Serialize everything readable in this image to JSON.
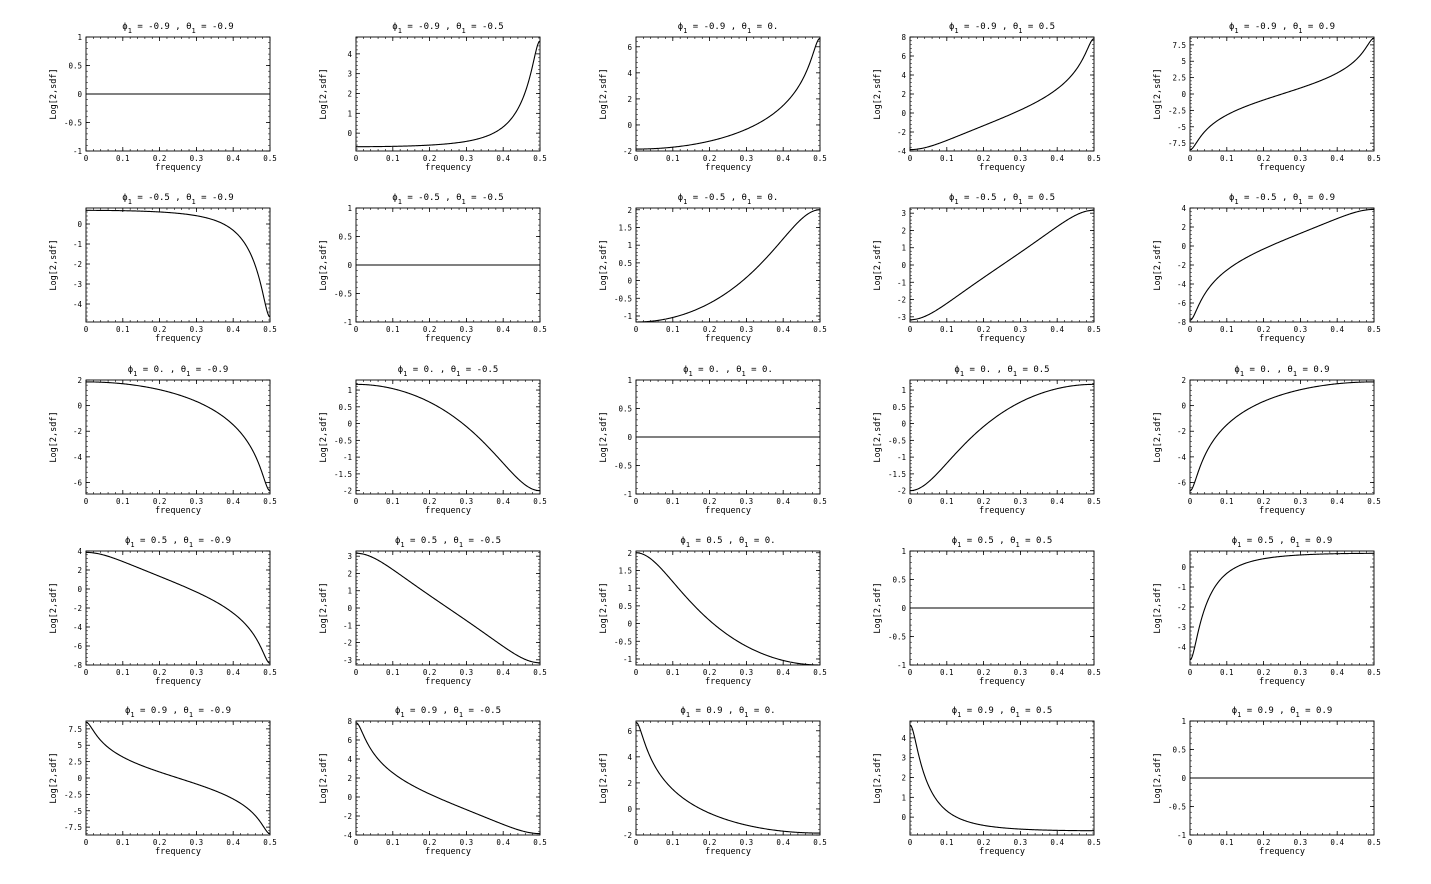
{
  "figure": {
    "ylabel": "Log[2,sdf]",
    "xlabel": "frequency",
    "x_ticks": [
      "0",
      "0.1",
      "0.2",
      "0.3",
      "0.4",
      "0.5"
    ]
  },
  "chart_data": [
    {
      "type": "line",
      "row": 0,
      "col": 0,
      "phi": -0.9,
      "theta": -0.9,
      "title_phi": "-0.9",
      "title_theta": "-0.9",
      "xlim": [
        0,
        0.5
      ],
      "ylim": [
        -1,
        1
      ],
      "yticks": [
        -1,
        -0.5,
        0,
        0.5,
        1
      ],
      "ytick_labels": [
        "-1",
        "-0.5",
        "0",
        "0.5",
        "1"
      ]
    },
    {
      "type": "line",
      "row": 0,
      "col": 1,
      "phi": -0.9,
      "theta": -0.5,
      "title_phi": "-0.9",
      "title_theta": "-0.5",
      "xlim": [
        0,
        0.5
      ],
      "ylim": [
        -0.9,
        4.85
      ],
      "yticks": [
        0,
        1,
        2,
        3,
        4
      ],
      "ytick_labels": [
        "0",
        "1",
        "2",
        "3",
        "4"
      ]
    },
    {
      "type": "line",
      "row": 0,
      "col": 2,
      "phi": -0.9,
      "theta": 0,
      "title_phi": "-0.9",
      "title_theta": "0.",
      "xlim": [
        0,
        0.5
      ],
      "ylim": [
        -2,
        6.75
      ],
      "yticks": [
        -2,
        0,
        2,
        4,
        6
      ],
      "ytick_labels": [
        "-2",
        "0",
        "2",
        "4",
        "6"
      ]
    },
    {
      "type": "line",
      "row": 0,
      "col": 3,
      "phi": -0.9,
      "theta": 0.5,
      "title_phi": "-0.9",
      "title_theta": "0.5",
      "xlim": [
        0,
        0.5
      ],
      "ylim": [
        -4,
        8
      ],
      "yticks": [
        -4,
        -2,
        0,
        2,
        4,
        6,
        8
      ],
      "ytick_labels": [
        "-4",
        "-2",
        "0",
        "2",
        "4",
        "6",
        "8"
      ]
    },
    {
      "type": "line",
      "row": 0,
      "col": 4,
      "phi": -0.9,
      "theta": 0.9,
      "title_phi": "-0.9",
      "title_theta": "0.9",
      "xlim": [
        0,
        0.5
      ],
      "ylim": [
        -8.7,
        8.7
      ],
      "yticks": [
        -7.5,
        -5,
        -2.5,
        0,
        2.5,
        5,
        7.5
      ],
      "ytick_labels": [
        "-7.5",
        "-5",
        "-2.5",
        "0",
        "2.5",
        "5",
        "7.5"
      ]
    },
    {
      "type": "line",
      "row": 1,
      "col": 0,
      "phi": -0.5,
      "theta": -0.9,
      "title_phi": "-0.5",
      "title_theta": "-0.9",
      "xlim": [
        0,
        0.5
      ],
      "ylim": [
        -4.9,
        0.8
      ],
      "yticks": [
        -4,
        -3,
        -2,
        -1,
        0
      ],
      "ytick_labels": [
        "-4",
        "-3",
        "-2",
        "-1",
        "0"
      ]
    },
    {
      "type": "line",
      "row": 1,
      "col": 1,
      "phi": -0.5,
      "theta": -0.5,
      "title_phi": "-0.5",
      "title_theta": "-0.5",
      "xlim": [
        0,
        0.5
      ],
      "ylim": [
        -1,
        1
      ],
      "yticks": [
        -1,
        -0.5,
        0,
        0.5,
        1
      ],
      "ytick_labels": [
        "-1",
        "-0.5",
        "0",
        "0.5",
        "1"
      ]
    },
    {
      "type": "line",
      "row": 1,
      "col": 2,
      "phi": -0.5,
      "theta": 0,
      "title_phi": "-0.5",
      "title_theta": "0.",
      "xlim": [
        0,
        0.5
      ],
      "ylim": [
        -1.17,
        2.05
      ],
      "yticks": [
        -1,
        -0.5,
        0,
        0.5,
        1,
        1.5,
        2
      ],
      "ytick_labels": [
        "-1",
        "-0.5",
        "0",
        "0.5",
        "1",
        "1.5",
        "2"
      ]
    },
    {
      "type": "line",
      "row": 1,
      "col": 3,
      "phi": -0.5,
      "theta": 0.5,
      "title_phi": "-0.5",
      "title_theta": "0.5",
      "xlim": [
        0,
        0.5
      ],
      "ylim": [
        -3.3,
        3.3
      ],
      "yticks": [
        -3,
        -2,
        -1,
        0,
        1,
        2,
        3
      ],
      "ytick_labels": [
        "-3",
        "-2",
        "-1",
        "0",
        "1",
        "2",
        "3"
      ]
    },
    {
      "type": "line",
      "row": 1,
      "col": 4,
      "phi": -0.5,
      "theta": 0.9,
      "title_phi": "-0.5",
      "title_theta": "0.9",
      "xlim": [
        0,
        0.5
      ],
      "ylim": [
        -8,
        4
      ],
      "yticks": [
        -8,
        -6,
        -4,
        -2,
        0,
        2,
        4
      ],
      "ytick_labels": [
        "-8",
        "-6",
        "-4",
        "-2",
        "0",
        "2",
        "4"
      ]
    },
    {
      "type": "line",
      "row": 2,
      "col": 0,
      "phi": 0,
      "theta": -0.9,
      "title_phi": "0.",
      "title_theta": "-0.9",
      "xlim": [
        0,
        0.5
      ],
      "ylim": [
        -6.9,
        2
      ],
      "yticks": [
        -6,
        -4,
        -2,
        0,
        2
      ],
      "ytick_labels": [
        "-6",
        "-4",
        "-2",
        "0",
        "2"
      ]
    },
    {
      "type": "line",
      "row": 2,
      "col": 1,
      "phi": 0,
      "theta": -0.5,
      "title_phi": "0.",
      "title_theta": "-0.5",
      "xlim": [
        0,
        0.5
      ],
      "ylim": [
        -2.1,
        1.3
      ],
      "yticks": [
        -2,
        -1.5,
        -1,
        -0.5,
        0,
        0.5,
        1
      ],
      "ytick_labels": [
        "-2",
        "-1.5",
        "-1",
        "-0.5",
        "0",
        "0.5",
        "1"
      ]
    },
    {
      "type": "line",
      "row": 2,
      "col": 2,
      "phi": 0,
      "theta": 0,
      "title_phi": "0.",
      "title_theta": "0.",
      "xlim": [
        0,
        0.5
      ],
      "ylim": [
        -1,
        1
      ],
      "yticks": [
        -1,
        -0.5,
        0,
        0.5,
        1
      ],
      "ytick_labels": [
        "-1",
        "-0.5",
        "0",
        "0.5",
        "1"
      ]
    },
    {
      "type": "line",
      "row": 2,
      "col": 3,
      "phi": 0,
      "theta": 0.5,
      "title_phi": "0.",
      "title_theta": "0.5",
      "xlim": [
        0,
        0.5
      ],
      "ylim": [
        -2.1,
        1.3
      ],
      "yticks": [
        -2,
        -1.5,
        -1,
        -0.5,
        0,
        0.5,
        1
      ],
      "ytick_labels": [
        "-2",
        "-1.5",
        "-1",
        "-0.5",
        "0",
        "0.5",
        "1"
      ]
    },
    {
      "type": "line",
      "row": 2,
      "col": 4,
      "phi": 0,
      "theta": 0.9,
      "title_phi": "0.",
      "title_theta": "0.9",
      "xlim": [
        0,
        0.5
      ],
      "ylim": [
        -6.9,
        2
      ],
      "yticks": [
        -6,
        -4,
        -2,
        0,
        2
      ],
      "ytick_labels": [
        "-6",
        "-4",
        "-2",
        "0",
        "2"
      ]
    },
    {
      "type": "line",
      "row": 3,
      "col": 0,
      "phi": 0.5,
      "theta": -0.9,
      "title_phi": "0.5",
      "title_theta": "-0.9",
      "xlim": [
        0,
        0.5
      ],
      "ylim": [
        -8,
        4
      ],
      "yticks": [
        -8,
        -6,
        -4,
        -2,
        0,
        2,
        4
      ],
      "ytick_labels": [
        "-8",
        "-6",
        "-4",
        "-2",
        "0",
        "2",
        "4"
      ]
    },
    {
      "type": "line",
      "row": 3,
      "col": 1,
      "phi": 0.5,
      "theta": -0.5,
      "title_phi": "0.5",
      "title_theta": "-0.5",
      "xlim": [
        0,
        0.5
      ],
      "ylim": [
        -3.3,
        3.3
      ],
      "yticks": [
        -3,
        -2,
        -1,
        0,
        1,
        2,
        3
      ],
      "ytick_labels": [
        "-3",
        "-2",
        "-1",
        "0",
        "1",
        "2",
        "3"
      ]
    },
    {
      "type": "line",
      "row": 3,
      "col": 2,
      "phi": 0.5,
      "theta": 0,
      "title_phi": "0.5",
      "title_theta": "0.",
      "xlim": [
        0,
        0.5
      ],
      "ylim": [
        -1.17,
        2.05
      ],
      "yticks": [
        -1,
        -0.5,
        0,
        0.5,
        1,
        1.5,
        2
      ],
      "ytick_labels": [
        "-1",
        "-0.5",
        "0",
        "0.5",
        "1",
        "1.5",
        "2"
      ]
    },
    {
      "type": "line",
      "row": 3,
      "col": 3,
      "phi": 0.5,
      "theta": 0.5,
      "title_phi": "0.5",
      "title_theta": "0.5",
      "xlim": [
        0,
        0.5
      ],
      "ylim": [
        -1,
        1
      ],
      "yticks": [
        -1,
        -0.5,
        0,
        0.5,
        1
      ],
      "ytick_labels": [
        "-1",
        "-0.5",
        "0",
        "0.5",
        "1"
      ]
    },
    {
      "type": "line",
      "row": 3,
      "col": 4,
      "phi": 0.5,
      "theta": 0.9,
      "title_phi": "0.5",
      "title_theta": "0.9",
      "xlim": [
        0,
        0.5
      ],
      "ylim": [
        -4.9,
        0.8
      ],
      "yticks": [
        -4,
        -3,
        -2,
        -1,
        0
      ],
      "ytick_labels": [
        "-4",
        "-3",
        "-2",
        "-1",
        "0"
      ]
    },
    {
      "type": "line",
      "row": 4,
      "col": 0,
      "phi": 0.9,
      "theta": -0.9,
      "title_phi": "0.9",
      "title_theta": "-0.9",
      "xlim": [
        0,
        0.5
      ],
      "ylim": [
        -8.7,
        8.7
      ],
      "yticks": [
        -7.5,
        -5,
        -2.5,
        0,
        2.5,
        5,
        7.5
      ],
      "ytick_labels": [
        "-7.5",
        "-5",
        "-2.5",
        "0",
        "2.5",
        "5",
        "7.5"
      ]
    },
    {
      "type": "line",
      "row": 4,
      "col": 1,
      "phi": 0.9,
      "theta": -0.5,
      "title_phi": "0.9",
      "title_theta": "-0.5",
      "xlim": [
        0,
        0.5
      ],
      "ylim": [
        -4,
        8
      ],
      "yticks": [
        -4,
        -2,
        0,
        2,
        4,
        6,
        8
      ],
      "ytick_labels": [
        "-4",
        "-2",
        "0",
        "2",
        "4",
        "6",
        "8"
      ]
    },
    {
      "type": "line",
      "row": 4,
      "col": 2,
      "phi": 0.9,
      "theta": 0,
      "title_phi": "0.9",
      "title_theta": "0.",
      "xlim": [
        0,
        0.5
      ],
      "ylim": [
        -2,
        6.75
      ],
      "yticks": [
        -2,
        0,
        2,
        4,
        6
      ],
      "ytick_labels": [
        "-2",
        "0",
        "2",
        "4",
        "6"
      ]
    },
    {
      "type": "line",
      "row": 4,
      "col": 3,
      "phi": 0.9,
      "theta": 0.5,
      "title_phi": "0.9",
      "title_theta": "0.5",
      "xlim": [
        0,
        0.5
      ],
      "ylim": [
        -0.9,
        4.85
      ],
      "yticks": [
        0,
        1,
        2,
        3,
        4
      ],
      "ytick_labels": [
        "0",
        "1",
        "2",
        "3",
        "4"
      ]
    },
    {
      "type": "line",
      "row": 4,
      "col": 4,
      "phi": 0.9,
      "theta": 0.9,
      "title_phi": "0.9",
      "title_theta": "0.9",
      "xlim": [
        0,
        0.5
      ],
      "ylim": [
        -1,
        1
      ],
      "yticks": [
        -1,
        -0.5,
        0,
        0.5,
        1
      ],
      "ytick_labels": [
        "-1",
        "-0.5",
        "0",
        "0.5",
        "1"
      ]
    }
  ]
}
